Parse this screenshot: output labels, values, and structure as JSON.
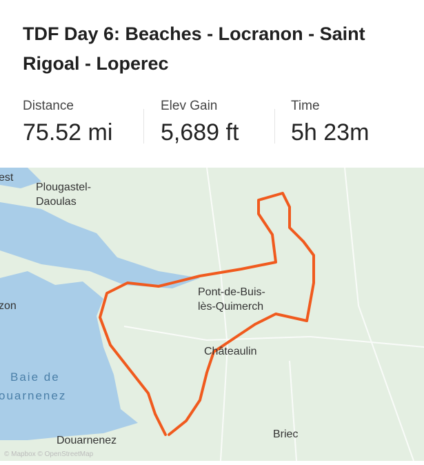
{
  "title": "TDF Day 6: Beaches - Locranon - Saint Rigoal - Loperec",
  "stats": [
    {
      "label": "Distance",
      "value": "75.52 mi"
    },
    {
      "label": "Elev Gain",
      "value": "5,689 ft"
    },
    {
      "label": "Time",
      "value": "5h 23m"
    }
  ],
  "map": {
    "labels": [
      "est",
      "Plougastel-\nDaoulas",
      "zon",
      "Pont-de-Buis-\nlès-Quimerch",
      "Châteaulin",
      "Baie de",
      "ouarnenez",
      "Douarnenez",
      "Briec"
    ],
    "attribution": "© Mapbox © OpenStreetMap",
    "route_color": "#f05a1e",
    "water_color": "#a9cde8"
  }
}
